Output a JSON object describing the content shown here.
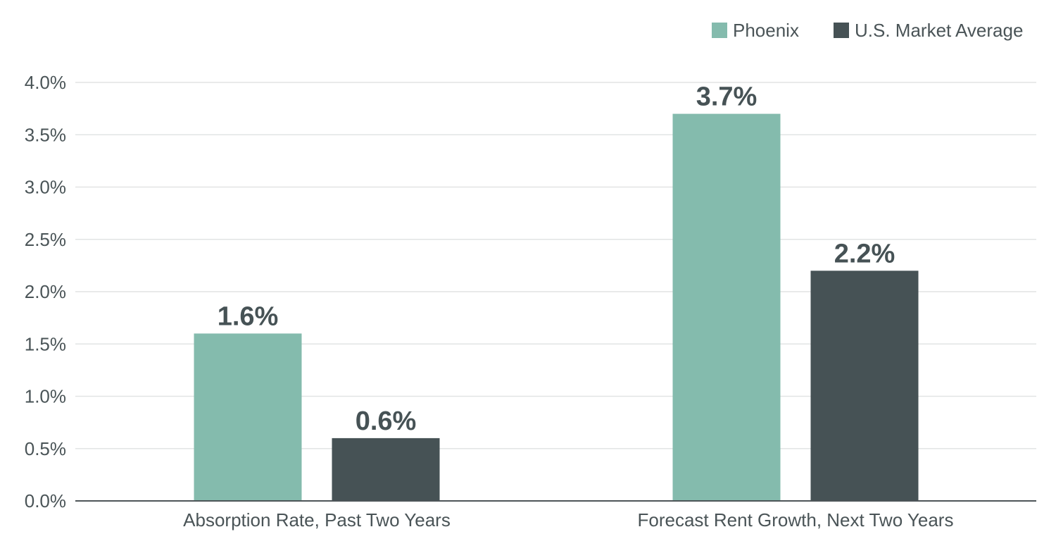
{
  "chart_data": {
    "type": "bar",
    "title": "",
    "xlabel": "",
    "ylabel": "",
    "categories": [
      "Absorption Rate, Past Two Years",
      "Forecast Rent Growth, Next Two Years"
    ],
    "series": [
      {
        "name": "Phoenix",
        "values": [
          1.6,
          3.7
        ],
        "labels": [
          "1.6%",
          "3.7%"
        ],
        "color": "#84bbad"
      },
      {
        "name": "U.S. Market Average",
        "values": [
          0.6,
          2.2
        ],
        "labels": [
          "0.6%",
          "2.2%"
        ],
        "color": "#465255"
      }
    ],
    "ylim": [
      0,
      4.0
    ],
    "yticks": [
      0,
      0.5,
      1.0,
      1.5,
      2.0,
      2.5,
      3.0,
      3.5,
      4.0
    ],
    "ytick_labels": [
      "0.0%",
      "0.5%",
      "1.0%",
      "1.5%",
      "2.0%",
      "2.5%",
      "3.0%",
      "3.5%",
      "4.0%"
    ],
    "grid": true,
    "legend_position": "top-right"
  }
}
